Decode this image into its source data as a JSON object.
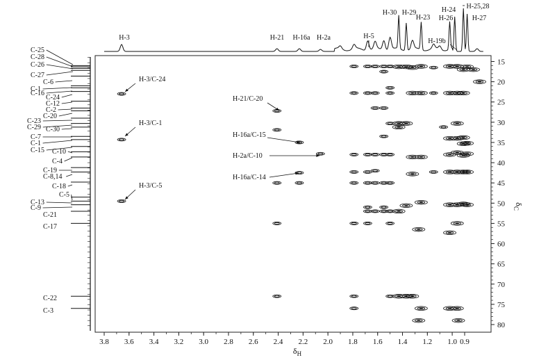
{
  "chart_data": {
    "type": "scatter",
    "title": "",
    "xlabel": "δH",
    "ylabel": "δC",
    "xlim": [
      3.8,
      0.75
    ],
    "ylim": [
      13,
      81
    ],
    "x_ticks": [
      3.8,
      3.6,
      3.4,
      3.2,
      3.0,
      2.8,
      2.6,
      2.4,
      2.2,
      2.0,
      1.8,
      1.6,
      1.4,
      1.2,
      1.0,
      0.9
    ],
    "x_tick_labels": [
      "3.8",
      "3.6",
      "3.4",
      "3.2",
      "3.0",
      "2.8",
      "2.6",
      "2.4",
      "2.2",
      "2.0",
      "1.8",
      "1.6",
      "1.4",
      "1.2",
      "1.0",
      "0.9"
    ],
    "y_ticks": [
      15,
      20,
      25,
      30,
      35,
      40,
      45,
      50,
      55,
      60,
      65,
      70,
      75,
      80
    ],
    "y_tick_labels": [
      "15",
      "20",
      "25",
      "30",
      "35",
      "40",
      "45",
      "50",
      "55",
      "60",
      "65",
      "70",
      "75",
      "80"
    ],
    "h_peak_labels": [
      {
        "label": "H-3",
        "x": 3.66
      },
      {
        "label": "H-21",
        "x": 2.4
      },
      {
        "label": "H-16a",
        "x": 2.23
      },
      {
        "label": "H-2a",
        "x": 2.06
      },
      {
        "label": "H-5",
        "x": 1.68
      },
      {
        "label": "H-30",
        "x": 1.43
      },
      {
        "label": "H-29",
        "x": 1.37
      },
      {
        "label": "H-23",
        "x": 1.25
      },
      {
        "label": "H-19b",
        "x": 1.1
      },
      {
        "label": "H-26",
        "x": 1.02
      },
      {
        "label": "H-24",
        "x": 0.98
      },
      {
        "label": "H-25,28",
        "x": 0.91
      },
      {
        "label": "H-27",
        "x": 0.88
      }
    ],
    "c_peak_labels": [
      {
        "label": "C-25",
        "y": 16.0
      },
      {
        "label": "C-28",
        "y": 16.3
      },
      {
        "label": "C-26",
        "y": 16.7
      },
      {
        "label": "C-27",
        "y": 17.2
      },
      {
        "label": "C-6",
        "y": 18.6
      },
      {
        "label": "C-1",
        "y": 21.0
      },
      {
        "label": "C-16",
        "y": 21.5
      },
      {
        "label": "C-24",
        "y": 22.4
      },
      {
        "label": "C-12",
        "y": 24.8
      },
      {
        "label": "C-2",
        "y": 26.5
      },
      {
        "label": "C-20",
        "y": 27.2
      },
      {
        "label": "C-23",
        "y": 29.0
      },
      {
        "label": "C-29",
        "y": 30.3
      },
      {
        "label": "C-30",
        "y": 31.2
      },
      {
        "label": "C-7",
        "y": 33.5
      },
      {
        "label": "C-1",
        "y": 34.3
      },
      {
        "label": "C-15",
        "y": 36.0
      },
      {
        "label": "C-10",
        "y": 37.3
      },
      {
        "label": "C-4",
        "y": 38.6
      },
      {
        "label": "C-19",
        "y": 41.2
      },
      {
        "label": "C-8,14",
        "y": 42.3
      },
      {
        "label": "C-18",
        "y": 44.8
      },
      {
        "label": "C-5",
        "y": 48.5
      },
      {
        "label": "C-13",
        "y": 49.5
      },
      {
        "label": "C-9",
        "y": 50.4
      },
      {
        "label": "C-21",
        "y": 52.0
      },
      {
        "label": "C-17",
        "y": 55.0
      },
      {
        "label": "C-22",
        "y": 73.0
      },
      {
        "label": "C-3",
        "y": 76.0
      }
    ],
    "annotations": [
      {
        "label": "H-3/C-24",
        "x": 3.66,
        "y": 23.0
      },
      {
        "label": "H-3/C-1",
        "x": 3.66,
        "y": 34.3
      },
      {
        "label": "H-3/C-5",
        "x": 3.66,
        "y": 49.5
      },
      {
        "label": "H-21/C-20",
        "x": 2.4,
        "y": 27.2
      },
      {
        "label": "H-16a/C-15",
        "x": 2.2,
        "y": 35.2
      },
      {
        "label": "H-2a/C-10",
        "x": 2.06,
        "y": 37.8
      },
      {
        "label": "H-16a/C-14",
        "x": 2.2,
        "y": 42.5
      }
    ],
    "cross_peaks": [
      [
        3.66,
        23.0
      ],
      [
        3.66,
        34.3
      ],
      [
        3.66,
        49.5
      ],
      [
        2.41,
        27.2
      ],
      [
        2.41,
        31.9
      ],
      [
        2.41,
        45.0
      ],
      [
        2.41,
        55.0
      ],
      [
        2.41,
        73.0
      ],
      [
        2.23,
        35.0
      ],
      [
        2.23,
        42.5
      ],
      [
        2.23,
        45.0
      ],
      [
        2.06,
        37.8
      ],
      [
        1.79,
        16.2
      ],
      [
        1.79,
        22.8
      ],
      [
        1.79,
        38.0
      ],
      [
        1.79,
        42.3
      ],
      [
        1.79,
        45.0
      ],
      [
        1.79,
        55.0
      ],
      [
        1.79,
        73.0
      ],
      [
        1.79,
        76.0
      ],
      [
        1.68,
        16.2
      ],
      [
        1.68,
        22.8
      ],
      [
        1.68,
        38.0
      ],
      [
        1.68,
        42.3
      ],
      [
        1.68,
        45.0
      ],
      [
        1.68,
        51.0
      ],
      [
        1.68,
        52.0
      ],
      [
        1.68,
        55.0
      ],
      [
        1.62,
        16.2
      ],
      [
        1.62,
        22.8
      ],
      [
        1.62,
        26.5
      ],
      [
        1.62,
        38.0
      ],
      [
        1.62,
        42.0
      ],
      [
        1.62,
        45.0
      ],
      [
        1.62,
        52.0
      ],
      [
        1.55,
        16.2
      ],
      [
        1.55,
        17.5
      ],
      [
        1.55,
        26.5
      ],
      [
        1.55,
        33.5
      ],
      [
        1.55,
        38.0
      ],
      [
        1.55,
        45.0
      ],
      [
        1.55,
        51.0
      ],
      [
        1.55,
        52.0
      ],
      [
        1.5,
        16.2
      ],
      [
        1.5,
        21.5
      ],
      [
        1.5,
        22.8
      ],
      [
        1.5,
        30.3
      ],
      [
        1.5,
        38.0
      ],
      [
        1.5,
        45.0
      ],
      [
        1.5,
        52.0
      ],
      [
        1.5,
        55.0
      ],
      [
        1.5,
        73.0
      ],
      [
        1.43,
        16.3
      ],
      [
        1.43,
        30.3
      ],
      [
        1.43,
        31.2
      ],
      [
        1.43,
        52.0
      ],
      [
        1.43,
        73.0
      ],
      [
        1.37,
        16.3
      ],
      [
        1.37,
        30.3
      ],
      [
        1.37,
        50.6
      ],
      [
        1.37,
        73.0
      ],
      [
        1.32,
        16.5
      ],
      [
        1.32,
        22.8
      ],
      [
        1.32,
        38.6
      ],
      [
        1.32,
        42.8
      ],
      [
        1.32,
        73.0
      ],
      [
        1.25,
        22.8
      ],
      [
        1.25,
        38.6
      ],
      [
        1.25,
        49.8
      ],
      [
        1.25,
        76.0
      ],
      [
        1.25,
        16.2
      ],
      [
        1.15,
        22.8
      ],
      [
        1.15,
        42.3
      ],
      [
        1.15,
        16.5
      ],
      [
        1.02,
        16.2
      ],
      [
        1.02,
        22.8
      ],
      [
        1.02,
        34.0
      ],
      [
        1.02,
        38.0
      ],
      [
        1.02,
        42.3
      ],
      [
        1.02,
        50.4
      ],
      [
        1.02,
        76.0
      ],
      [
        0.96,
        16.2
      ],
      [
        0.96,
        22.8
      ],
      [
        0.96,
        30.3
      ],
      [
        0.96,
        34.0
      ],
      [
        0.96,
        37.5
      ],
      [
        0.96,
        42.3
      ],
      [
        0.96,
        50.4
      ],
      [
        0.96,
        55.0
      ],
      [
        0.96,
        76.0
      ],
      [
        0.91,
        17.0
      ],
      [
        0.91,
        22.8
      ],
      [
        0.91,
        33.8
      ],
      [
        0.91,
        35.3
      ],
      [
        0.91,
        38.2
      ],
      [
        0.91,
        42.3
      ],
      [
        0.91,
        50.2
      ],
      [
        0.88,
        16.3
      ],
      [
        0.88,
        35.2
      ],
      [
        0.88,
        37.8
      ],
      [
        0.88,
        42.3
      ],
      [
        0.88,
        50.4
      ],
      [
        0.95,
        79.0
      ],
      [
        1.27,
        79.0
      ],
      [
        1.27,
        56.5
      ],
      [
        1.02,
        57.3
      ],
      [
        0.83,
        17.0
      ],
      [
        0.78,
        20.0
      ],
      [
        1.07,
        31.2
      ]
    ],
    "h_spectrum": [
      {
        "x": 3.66,
        "h": 10
      },
      {
        "x": 2.41,
        "h": 4
      },
      {
        "x": 2.23,
        "h": 4
      },
      {
        "x": 2.06,
        "h": 3
      },
      {
        "x": 1.9,
        "h": 4
      },
      {
        "x": 1.79,
        "h": 6
      },
      {
        "x": 1.68,
        "h": 14
      },
      {
        "x": 1.62,
        "h": 10
      },
      {
        "x": 1.55,
        "h": 14
      },
      {
        "x": 1.5,
        "h": 18
      },
      {
        "x": 1.43,
        "h": 48
      },
      {
        "x": 1.37,
        "h": 40
      },
      {
        "x": 1.32,
        "h": 12
      },
      {
        "x": 1.25,
        "h": 40
      },
      {
        "x": 1.15,
        "h": 6
      },
      {
        "x": 1.1,
        "h": 5
      },
      {
        "x": 1.02,
        "h": 40
      },
      {
        "x": 0.98,
        "h": 50
      },
      {
        "x": 0.91,
        "h": 62
      },
      {
        "x": 0.88,
        "h": 54
      },
      {
        "x": 0.8,
        "h": 4
      }
    ]
  }
}
